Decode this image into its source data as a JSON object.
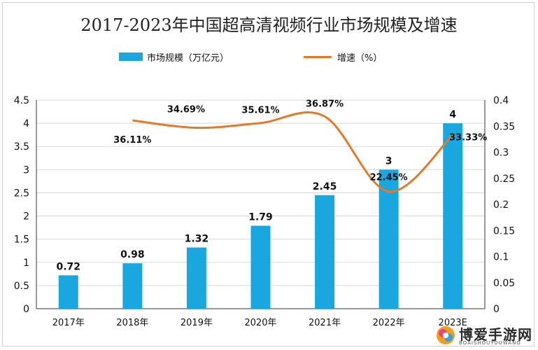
{
  "chart_data": {
    "type": "bar",
    "title": "2017-2023年中国超高清视频行业市场规模及增速",
    "categories": [
      "2017年",
      "2018年",
      "2019年",
      "2020年",
      "2021年",
      "2022年",
      "2023E"
    ],
    "series": [
      {
        "name": "市场规模（万亿元）",
        "type": "bar",
        "axis": "left",
        "color": "#1aa7e0",
        "values": [
          0.72,
          0.98,
          1.32,
          1.79,
          2.45,
          3,
          4
        ],
        "labels": [
          "0.72",
          "0.98",
          "1.32",
          "1.79",
          "2.45",
          "3",
          "4"
        ]
      },
      {
        "name": "增速（%）",
        "type": "line",
        "axis": "right",
        "color": "#e07b2c",
        "values": [
          null,
          0.3611,
          0.3469,
          0.3561,
          0.3687,
          0.2245,
          0.3333
        ],
        "labels": [
          "",
          "36.11%",
          "34.69%",
          "35.61%",
          "36.87%",
          "22.45%",
          "33.33%"
        ]
      }
    ],
    "y_left": {
      "ylim": [
        0,
        4.5
      ],
      "ticks": [
        "0",
        "0.5",
        "1",
        "1.5",
        "2",
        "2.5",
        "3",
        "3.5",
        "4",
        "4.5"
      ]
    },
    "y_right": {
      "ylim": [
        0,
        0.4
      ],
      "ticks": [
        "0",
        "0.05",
        "0.1",
        "0.15",
        "0.2",
        "0.25",
        "0.3",
        "0.35",
        "0.4"
      ]
    },
    "grid": "horizontal",
    "legend": "top-center"
  },
  "watermark": {
    "text": "博爱手游网",
    "sub": "BOAISHOUYOUWANG"
  }
}
